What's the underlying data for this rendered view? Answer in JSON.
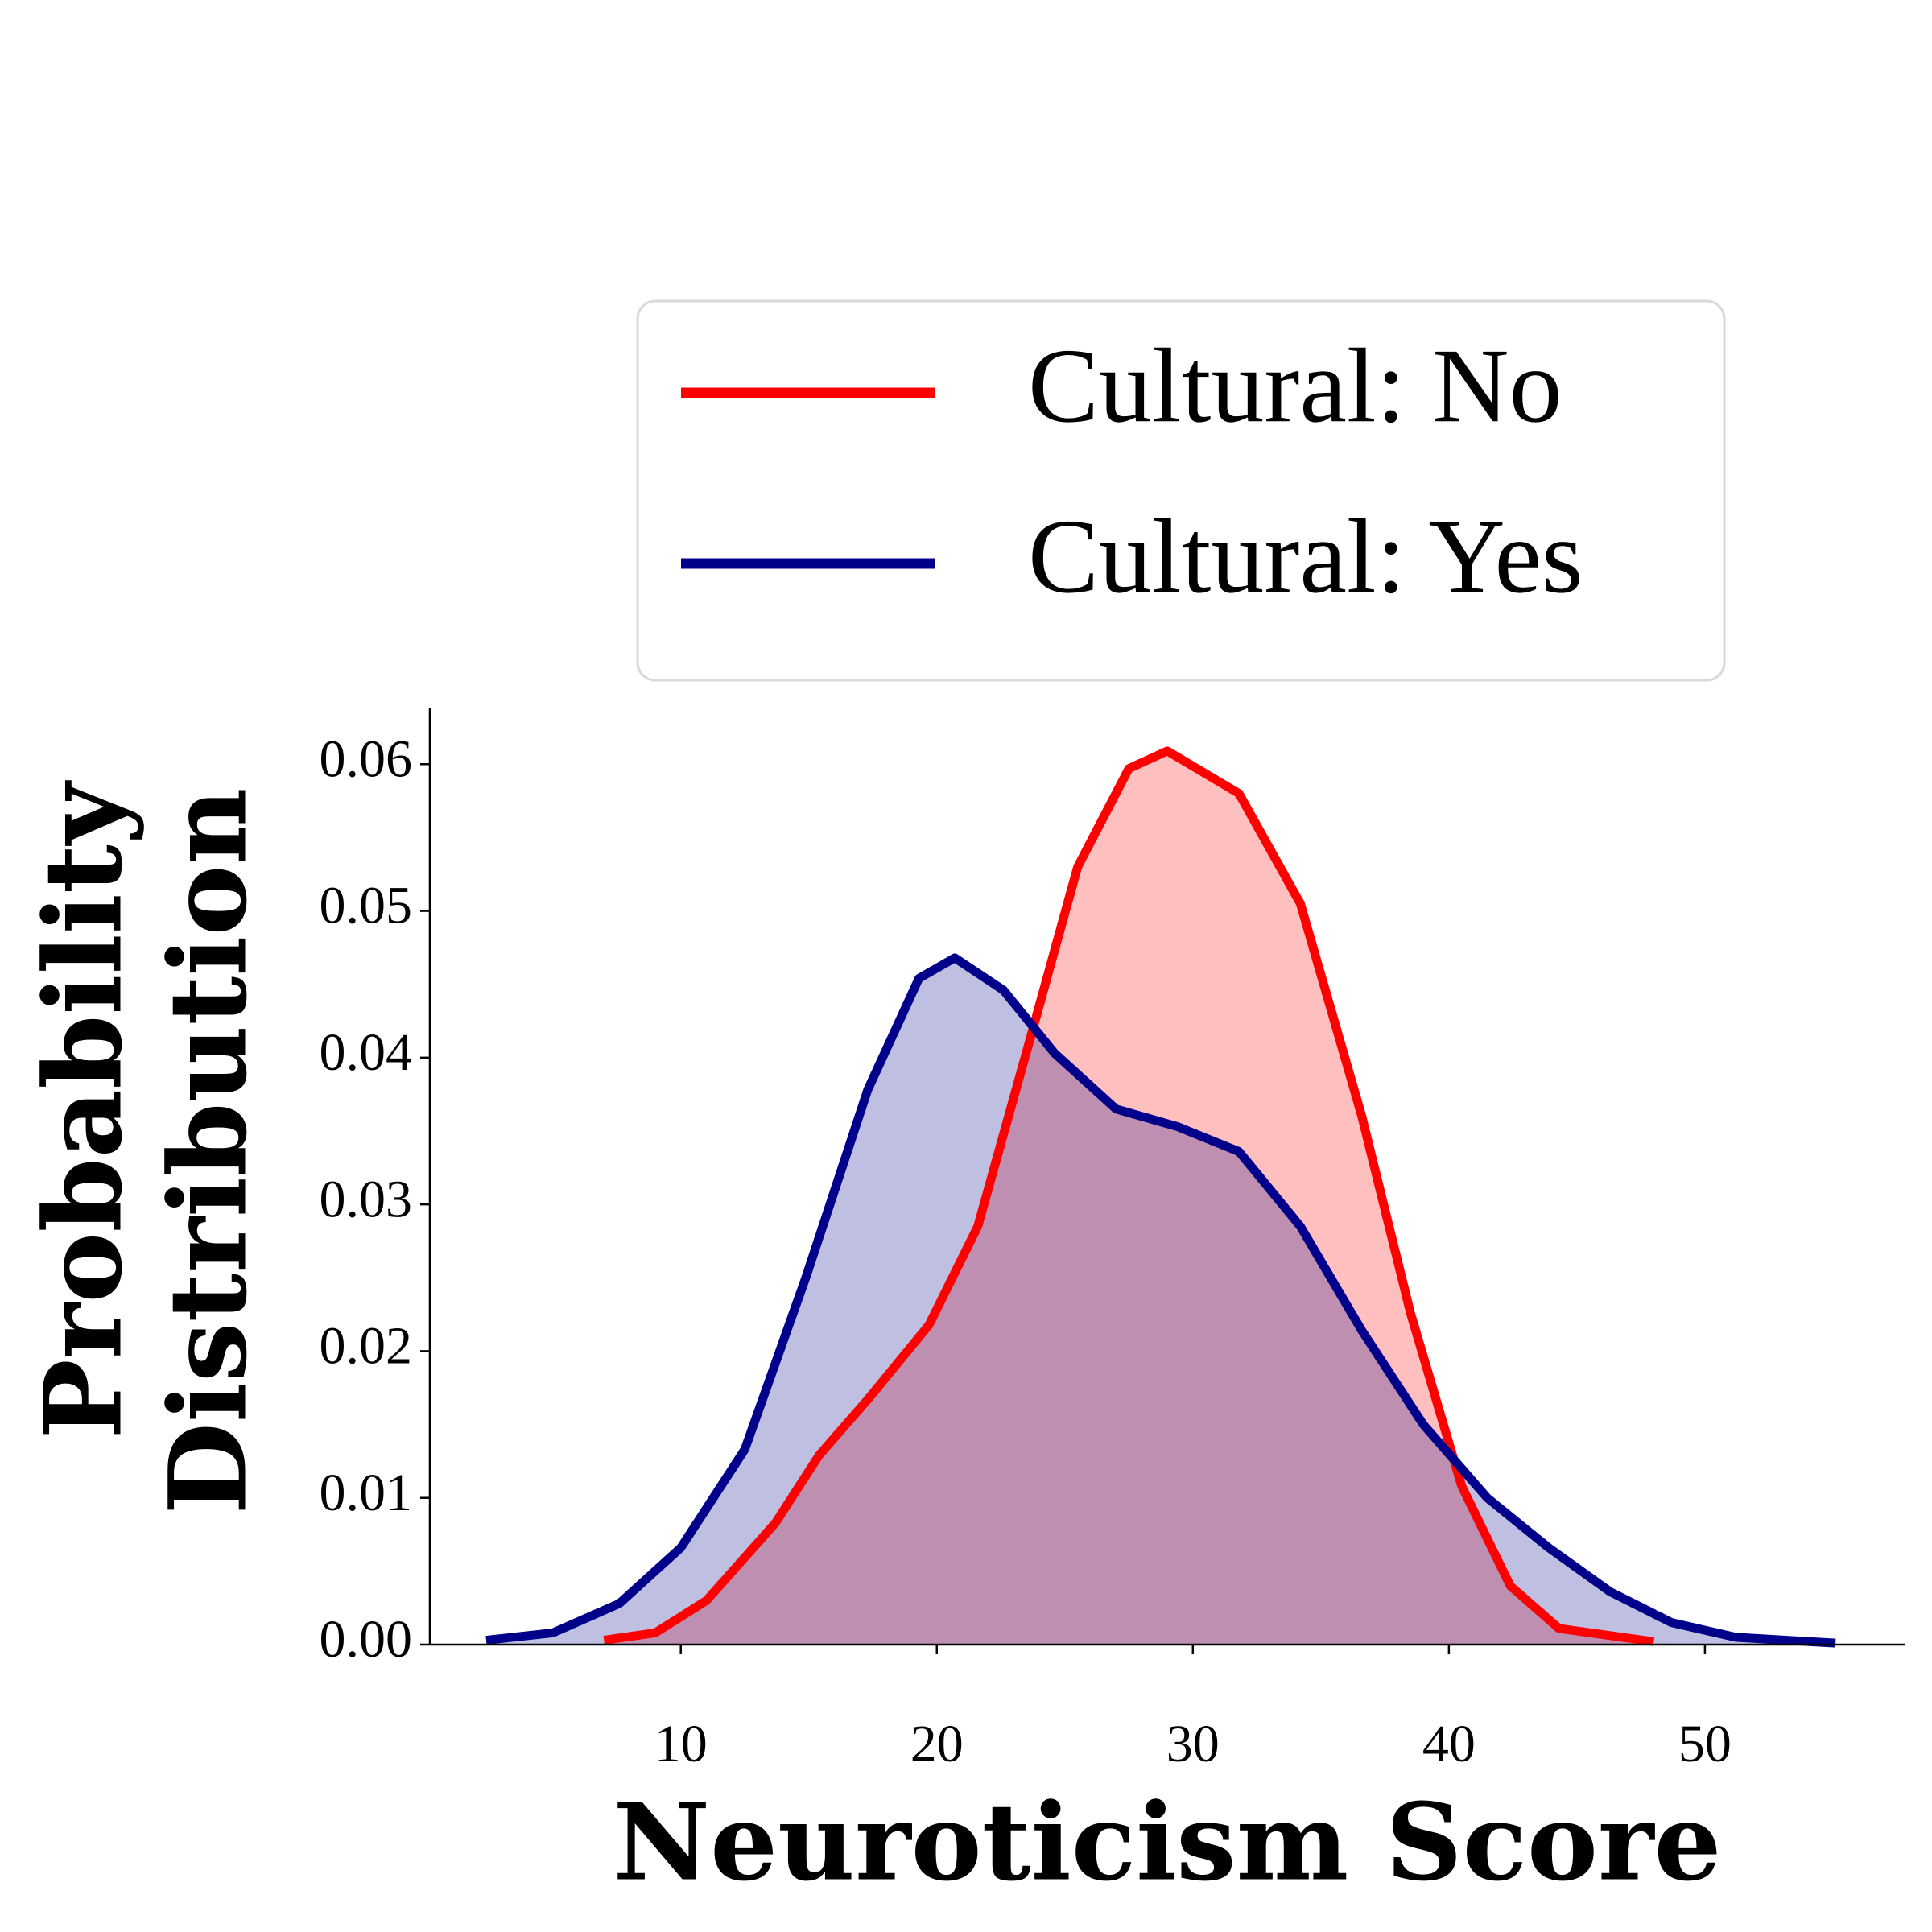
{
  "chart_data": {
    "type": "density",
    "xlabel": "Neuroticism Score",
    "ylabel": [
      "Probability",
      "Distribution"
    ],
    "xlim": [
      0.2,
      57.8
    ],
    "ylim": [
      0,
      0.0638
    ],
    "xticks": [
      10,
      20,
      30,
      40,
      50
    ],
    "yticks": [
      {
        "value": 0,
        "label": "0.00"
      },
      {
        "value": 0.01,
        "label": "0.01"
      },
      {
        "value": 0.02,
        "label": "0.02"
      },
      {
        "value": 0.03,
        "label": "0.03"
      },
      {
        "value": 0.04,
        "label": "0.04"
      },
      {
        "value": 0.05,
        "label": "0.05"
      },
      {
        "value": 0.06,
        "label": "0.06"
      }
    ],
    "legend": "upper right",
    "series": [
      {
        "name": "Cultural: No",
        "color": "#ff0000",
        "x": [
          7,
          9,
          11,
          13.7,
          15.4,
          17.3,
          19.7,
          21.6,
          23.6,
          25.5,
          27.5,
          29,
          31.8,
          34.2,
          36.6,
          38.5,
          40.5,
          42.4,
          44.3,
          48
        ],
        "values": [
          0.0003,
          0.0008,
          0.003,
          0.0083,
          0.0129,
          0.0167,
          0.0218,
          0.0285,
          0.041,
          0.053,
          0.0597,
          0.0609,
          0.058,
          0.0505,
          0.036,
          0.0226,
          0.0108,
          0.004,
          0.0011,
          0.0002
        ]
      },
      {
        "name": "Cultural: Yes",
        "color": "#00008b",
        "x": [
          2.4,
          5,
          7.6,
          10,
          12.5,
          14.9,
          17.3,
          19.3,
          20.7,
          22.6,
          24.6,
          27,
          29.4,
          31.8,
          34.2,
          36.6,
          39,
          41.5,
          43.9,
          46.3,
          48.7,
          51.2,
          55.1
        ],
        "values": [
          0.0003,
          0.0008,
          0.0028,
          0.0066,
          0.0133,
          0.0251,
          0.0378,
          0.0454,
          0.0468,
          0.0446,
          0.0403,
          0.0365,
          0.0353,
          0.0336,
          0.0285,
          0.0214,
          0.015,
          0.01,
          0.0066,
          0.0036,
          0.0015,
          0.0005,
          0.0001
        ]
      }
    ]
  }
}
